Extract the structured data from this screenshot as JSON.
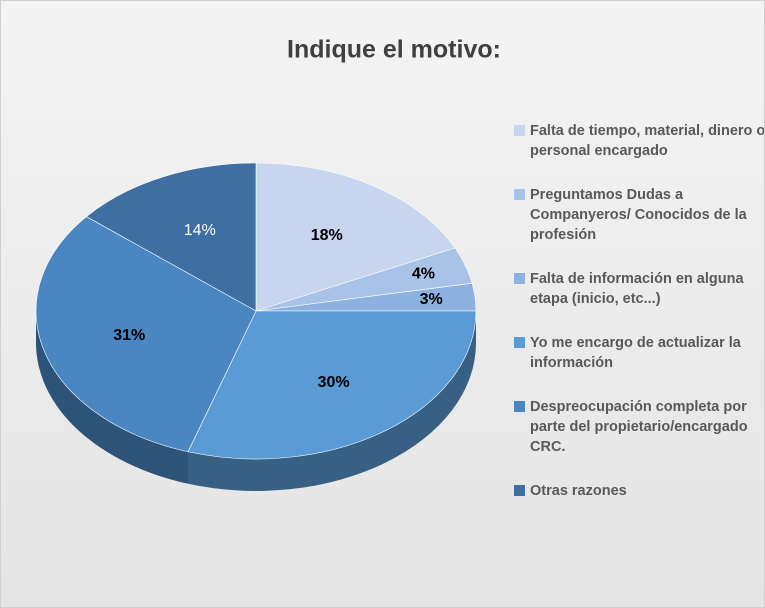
{
  "chart_data": {
    "type": "pie",
    "title": "Indique el motivo:",
    "categories": [
      "Falta de tiempo, material, dinero o personal encargado",
      "Preguntamos Dudas a Companyeros/ Conocidos de la profesión",
      "Falta de información en alguna etapa (inicio, etc...)",
      "Yo me encargo de actualizar la información",
      "Despreocupación completa por parte del propietario/encargado CRC.",
      "Otras razones"
    ],
    "values": [
      18,
      4,
      3,
      30,
      31,
      14
    ],
    "value_labels": [
      "18%",
      "4%",
      "3%",
      "30%",
      "31%",
      "14%"
    ],
    "colors": [
      "#c7d5ee",
      "#a9c2e7",
      "#8eb2e0",
      "#5b9bd5",
      "#4a86c1",
      "#3f6fa2"
    ],
    "legend": "right"
  }
}
